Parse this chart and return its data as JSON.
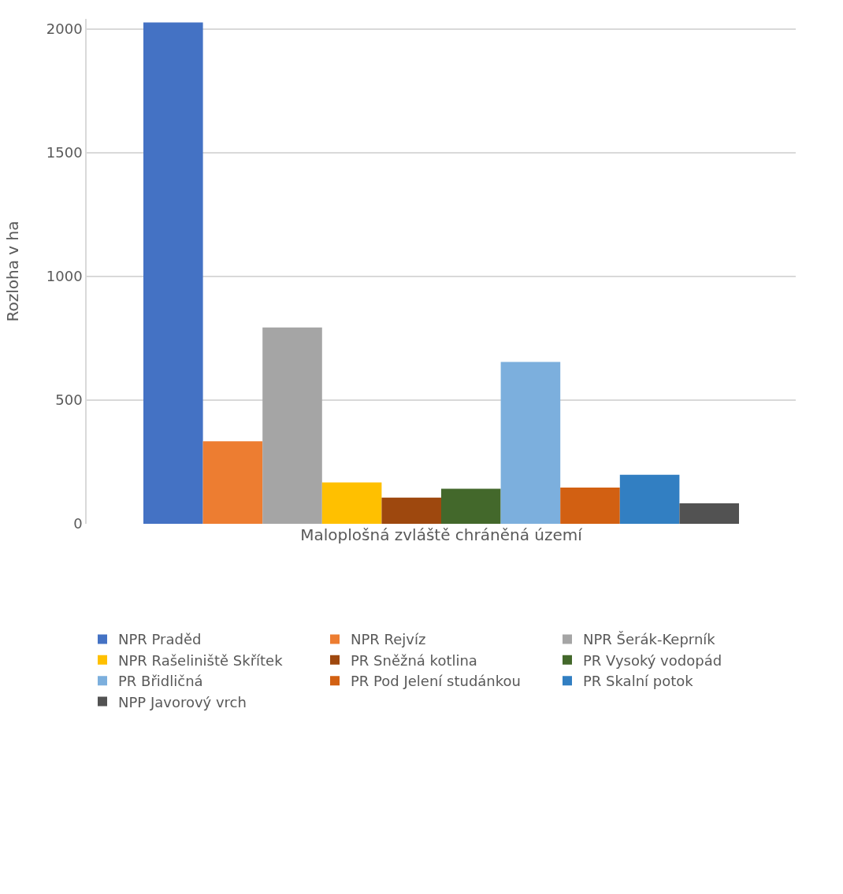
{
  "chart_data": {
    "type": "bar",
    "ylabel": "Rozloha v ha",
    "categories": [
      "Maloplošná zvláště chráněná území"
    ],
    "series": [
      {
        "name": "NPR Praděd",
        "color": "#4472c4",
        "values": [
          2026
        ]
      },
      {
        "name": "NPR Rejvíz",
        "color": "#ed7d31",
        "values": [
          333
        ]
      },
      {
        "name": "NPR Šerák-Keprník",
        "color": "#a5a5a5",
        "values": [
          793
        ]
      },
      {
        "name": "NPR Rašeliniště Skřítek",
        "color": "#ffc000",
        "values": [
          167
        ]
      },
      {
        "name": "PR Sněžná kotlina",
        "color": "#9e480e",
        "values": [
          106
        ]
      },
      {
        "name": "PR Vysoký vodopád",
        "color": "#43682b",
        "values": [
          142
        ]
      },
      {
        "name": "PR Břidličná",
        "color": "#7cafdd",
        "values": [
          654
        ]
      },
      {
        "name": "PR Pod Jelení studánkou",
        "color": "#d26012",
        "values": [
          146
        ]
      },
      {
        "name": "PR Skalní potok",
        "color": "#327fc2",
        "values": [
          198
        ]
      },
      {
        "name": "NPP Javorový vrch",
        "color": "#525252",
        "values": [
          83
        ]
      }
    ],
    "ylim": [
      0,
      2040
    ],
    "yticks": [
      0,
      500,
      1000,
      1500,
      2000
    ],
    "grid": "y",
    "legend": "bottom"
  }
}
